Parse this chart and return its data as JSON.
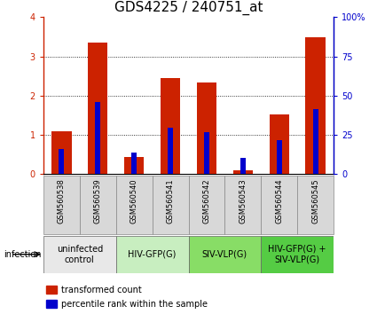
{
  "title": "GDS4225 / 240751_at",
  "samples": [
    "GSM560538",
    "GSM560539",
    "GSM560540",
    "GSM560541",
    "GSM560542",
    "GSM560543",
    "GSM560544",
    "GSM560545"
  ],
  "red_values": [
    1.1,
    3.35,
    0.45,
    2.45,
    2.33,
    0.1,
    1.52,
    3.48
  ],
  "blue_values_pct": [
    16.0,
    46.0,
    14.0,
    29.5,
    27.0,
    10.5,
    22.0,
    41.5
  ],
  "ylim_left": [
    0,
    4
  ],
  "ylim_right": [
    0,
    100
  ],
  "yticks_left": [
    0,
    1,
    2,
    3,
    4
  ],
  "yticks_right": [
    0,
    25,
    50,
    75,
    100
  ],
  "yticklabels_left": [
    "0",
    "1",
    "2",
    "3",
    "4"
  ],
  "yticklabels_right": [
    "0",
    "25",
    "50",
    "75",
    "100%"
  ],
  "red_color": "#cc2200",
  "blue_color": "#0000cc",
  "group_labels": [
    "uninfected\ncontrol",
    "HIV-GFP(G)",
    "SIV-VLP(G)",
    "HIV-GFP(G) +\nSIV-VLP(G)"
  ],
  "group_ranges": [
    [
      0,
      2
    ],
    [
      2,
      4
    ],
    [
      4,
      6
    ],
    [
      6,
      8
    ]
  ],
  "group_colors": [
    "#e8e8e8",
    "#bbeeaa",
    "#88dd66",
    "#55cc55"
  ],
  "sample_bg_color": "#d8d8d8",
  "infection_label": "infection",
  "legend_red": "transformed count",
  "legend_blue": "percentile rank within the sample",
  "title_fontsize": 11,
  "tick_fontsize": 7,
  "sample_fontsize": 6,
  "group_fontsize": 7
}
